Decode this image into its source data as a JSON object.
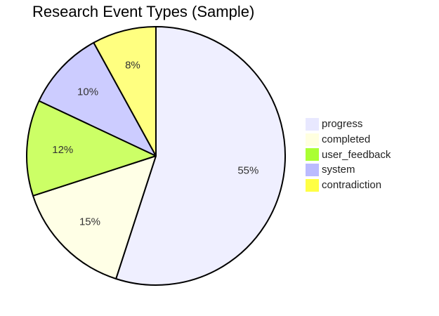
{
  "chart_data": {
    "type": "pie",
    "title": "Research Event Types (Sample)",
    "slices": [
      {
        "label": "progress",
        "value": 55,
        "display": "55%",
        "color": "#efefff"
      },
      {
        "label": "completed",
        "value": 15,
        "display": "15%",
        "color": "#ffffe6"
      },
      {
        "label": "user_feedback",
        "value": 12,
        "display": "12%",
        "color": "#ccff66"
      },
      {
        "label": "system",
        "value": 10,
        "display": "10%",
        "color": "#ccccff"
      },
      {
        "label": "contradiction",
        "value": 8,
        "display": "8%",
        "color": "#ffff80"
      }
    ],
    "legend_position": "right",
    "start_angle": "top",
    "direction": "clockwise"
  },
  "legend": {
    "swatch_colors": [
      "#e8e8ff",
      "#ffffe0",
      "#aaff33",
      "#bbbbff",
      "#ffff44"
    ]
  }
}
